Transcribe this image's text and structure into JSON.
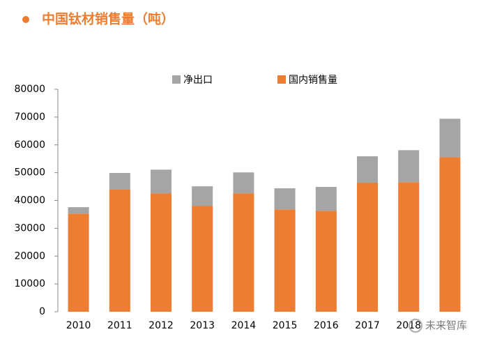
{
  "chart_data": {
    "type": "stacked_bar",
    "title": "中国钛材销售量（吨）",
    "categories": [
      "2010",
      "2011",
      "2012",
      "2013",
      "2014",
      "2015",
      "2016",
      "2017",
      "2018",
      null
    ],
    "series": [
      {
        "name": "国内销售量",
        "color": "#ed7d31",
        "values": [
          35300,
          43900,
          42600,
          38100,
          42600,
          36800,
          36300,
          46400,
          46600,
          55600
        ]
      },
      {
        "name": "净出口",
        "color": "#a5a5a5",
        "values": [
          2300,
          6000,
          8500,
          7000,
          7500,
          7600,
          8600,
          9500,
          11500,
          13800
        ]
      }
    ],
    "ylim": [
      0,
      80000
    ],
    "yticks": [
      0,
      10000,
      20000,
      30000,
      40000,
      50000,
      60000,
      70000,
      80000
    ],
    "grid": false,
    "watermark": "未来智库"
  }
}
